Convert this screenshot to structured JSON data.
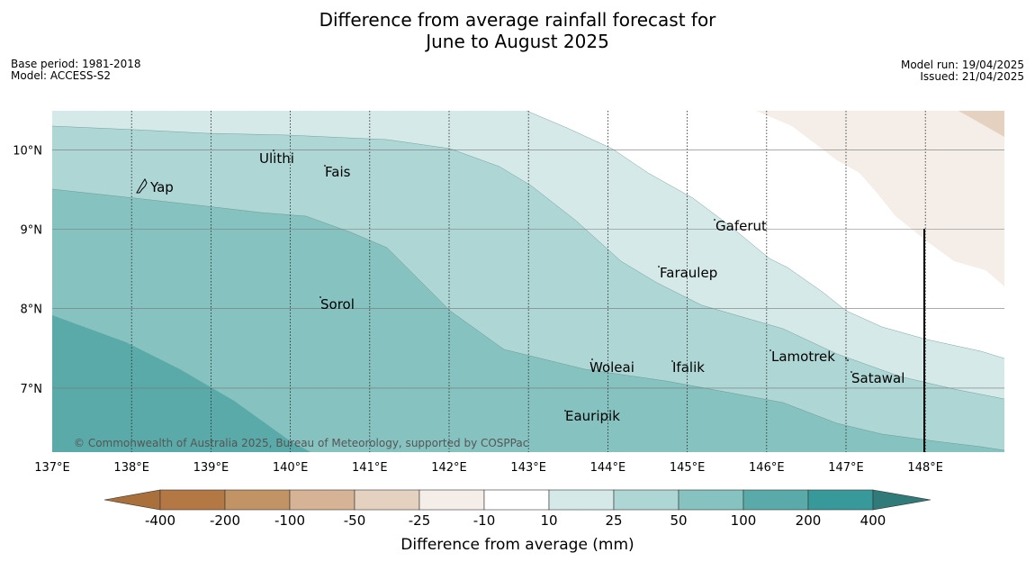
{
  "title": {
    "line1": "Difference from average rainfall forecast for",
    "line2": "June to August 2025"
  },
  "meta_left": {
    "base_period": "Base period: 1981-2018",
    "model": "Model: ACCESS-S2"
  },
  "meta_right": {
    "model_run": "Model run: 19/04/2025",
    "issued": "Issued: 21/04/2025"
  },
  "map": {
    "lon_range": [
      137,
      149
    ],
    "lat_range": [
      6.2,
      10.5
    ],
    "lon_ticks": [
      "137°E",
      "138°E",
      "139°E",
      "140°E",
      "141°E",
      "142°E",
      "143°E",
      "144°E",
      "145°E",
      "146°E",
      "147°E",
      "148°E"
    ],
    "lat_ticks": [
      "10°N",
      "9°N",
      "8°N",
      "7°N"
    ],
    "places": [
      {
        "name": "Yap"
      },
      {
        "name": "Ulithi"
      },
      {
        "name": "Fais"
      },
      {
        "name": "Gaferut"
      },
      {
        "name": "Faraulep"
      },
      {
        "name": "Sorol"
      },
      {
        "name": "Woleai"
      },
      {
        "name": "Ifalik"
      },
      {
        "name": "Lamotrek"
      },
      {
        "name": "Satawal"
      },
      {
        "name": "Eauripik"
      }
    ],
    "copyright": "© Commonwealth of Australia 2025, Bureau of Meteorology, supported by COSPPac"
  },
  "colorbar": {
    "title": "Difference from average (mm)",
    "ticks": [
      "-400",
      "-200",
      "-100",
      "-50",
      "-25",
      "-10",
      "10",
      "25",
      "50",
      "100",
      "200",
      "400"
    ],
    "colors": [
      "#a9703c",
      "#b37844",
      "#c29365",
      "#d5b394",
      "#e5d1c0",
      "#f5eee8",
      "#ffffff",
      "#d5e9e8",
      "#aed6d5",
      "#86c2c0",
      "#5aaaa9",
      "#37999a",
      "#307a7a"
    ]
  }
}
